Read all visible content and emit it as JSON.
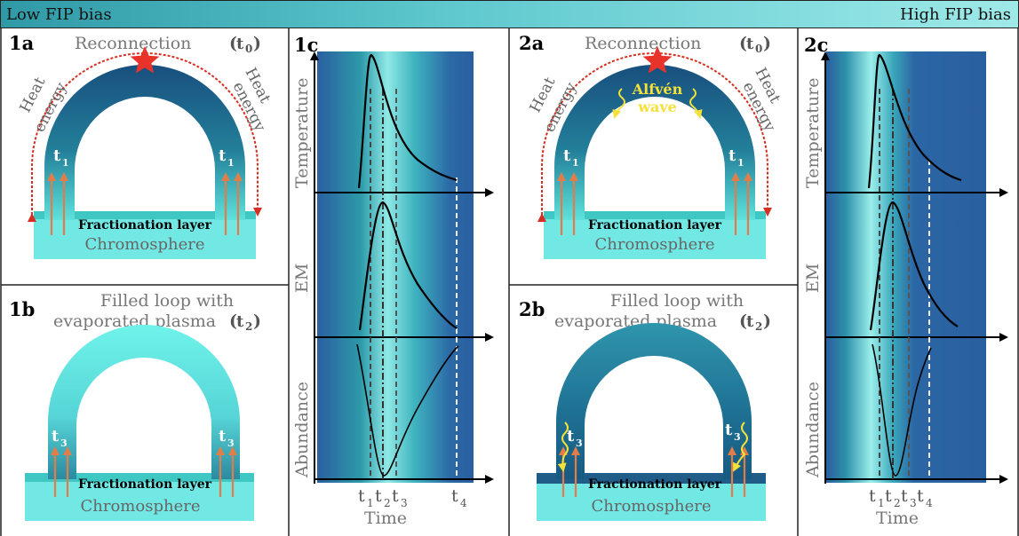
{
  "header": {
    "left": "Low FIP bias",
    "right": "High FIP bias"
  },
  "panels": {
    "p1a": {
      "label": "1a",
      "title": "Reconnection",
      "title_t": "t",
      "title_sub": "0",
      "heat_left": [
        "Heat",
        "energy"
      ],
      "heat_right": [
        "Heat",
        "energy"
      ],
      "t_left": "t",
      "t_left_sub": "1",
      "t_right": "t",
      "t_right_sub": "1",
      "frac": "Fractionation layer",
      "chromo": "Chromosphere"
    },
    "p1b": {
      "label": "1b",
      "title_line1": "Filled loop with",
      "title_line2": "evaporated plasma",
      "title_t": "t",
      "title_sub": "2",
      "t_left": "t",
      "t_left_sub": "3",
      "t_right": "t",
      "t_right_sub": "3",
      "frac": "Fractionation layer",
      "chromo": "Chromosphere"
    },
    "p1c": {
      "label": "1c",
      "ylabels": [
        "Temperature",
        "EM",
        "Abundance"
      ],
      "xlabel": "Time",
      "ticks": [
        {
          "t": "t",
          "s": "1"
        },
        {
          "t": "t",
          "s": "2"
        },
        {
          "t": "t",
          "s": "3"
        },
        {
          "t": "t",
          "s": "4"
        }
      ]
    },
    "p2a": {
      "label": "2a",
      "title": "Reconnection",
      "title_t": "t",
      "title_sub": "0",
      "heat_left": [
        "Heat",
        "energy"
      ],
      "heat_right": [
        "Heat",
        "energy"
      ],
      "wave": [
        "Alfvén",
        "wave"
      ],
      "t_left": "t",
      "t_left_sub": "1",
      "t_right": "t",
      "t_right_sub": "1",
      "frac": "Fractionation layer",
      "chromo": "Chromosphere"
    },
    "p2b": {
      "label": "2b",
      "title_line1": "Filled loop with",
      "title_line2": "evaporated plasma",
      "title_t": "t",
      "title_sub": "2",
      "t_left": "t",
      "t_left_sub": "3",
      "t_right": "t",
      "t_right_sub": "3",
      "frac": "Fractionation layer",
      "chromo": "Chromosphere"
    },
    "p2c": {
      "label": "2c",
      "ylabels": [
        "Temperature",
        "EM",
        "Abundance"
      ],
      "xlabel": "Time",
      "ticks": [
        {
          "t": "t",
          "s": "1"
        },
        {
          "t": "t",
          "s": "2"
        },
        {
          "t": "t",
          "s": "3"
        },
        {
          "t": "t",
          "s": "4"
        }
      ]
    }
  },
  "colors": {
    "star": "#e8332a",
    "heat_arrow": "#d62f22",
    "up_arrow": "#e27d4a",
    "wave": "#f5e13a",
    "loop_dark": "#1a5b85",
    "loop_light": "#67f0e8",
    "chromo": "#72e8e4",
    "layer": "#3fc7c4",
    "panel_bg_dark": "#2a63a3"
  }
}
